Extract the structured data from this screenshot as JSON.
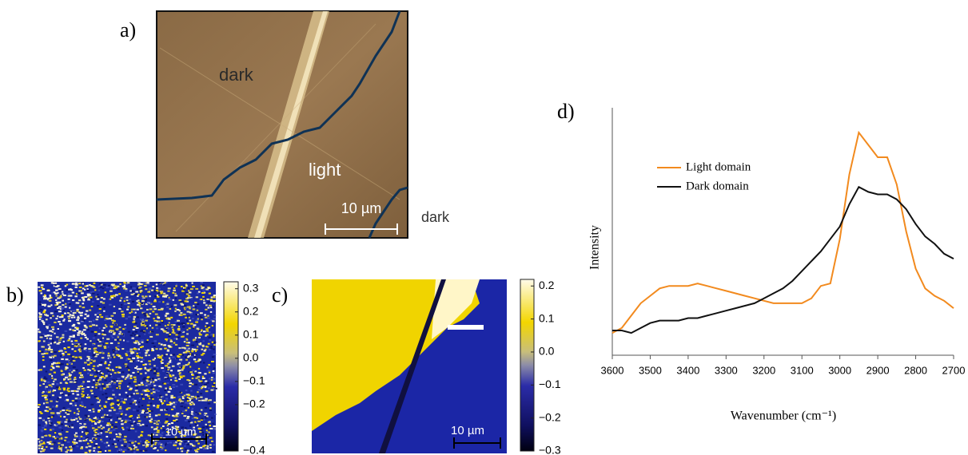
{
  "panel_a": {
    "label": "a)",
    "annotations": [
      "dark",
      "light"
    ],
    "scale_bar": "10 µm",
    "outside_label": "dark"
  },
  "panel_b": {
    "label": "b)",
    "scale_bar": "10 µm",
    "colorbar": {
      "lim": [
        -0.4,
        0.33
      ],
      "ticks": [
        0.3,
        0.2,
        0.1,
        {
          "value": 0,
          "label": "0.0"
        },
        {
          "value": -0.1,
          "label": "−0.1"
        },
        {
          "value": -0.2,
          "label": "−0.2"
        },
        {
          "value": -0.4,
          "label": "−0.4"
        }
      ]
    }
  },
  "panel_c": {
    "label": "c)",
    "scale_bar": "10 µm",
    "colorbar": {
      "lim": [
        -0.3,
        0.22
      ],
      "ticks": [
        0.2,
        0.1,
        {
          "value": 0,
          "label": "0.0"
        },
        {
          "value": -0.1,
          "label": "−0.1"
        },
        {
          "value": -0.2,
          "label": "−0.2"
        },
        {
          "value": -0.3,
          "label": "−0.3"
        }
      ]
    }
  },
  "chart_data": {
    "type": "line",
    "panel_label": "d)",
    "x_label": "Wavenumber (cm⁻¹)",
    "y_label": "Intensity",
    "x": [
      3600,
      3575,
      3550,
      3525,
      3500,
      3475,
      3450,
      3425,
      3400,
      3375,
      3350,
      3325,
      3300,
      3275,
      3250,
      3225,
      3200,
      3175,
      3150,
      3125,
      3100,
      3075,
      3050,
      3025,
      3000,
      2975,
      2950,
      2925,
      2900,
      2875,
      2850,
      2825,
      2800,
      2775,
      2750,
      2725,
      2700
    ],
    "xlim": [
      3600,
      2700
    ],
    "xticks": [
      3600,
      3500,
      3400,
      3300,
      3200,
      3100,
      3000,
      2900,
      2800,
      2700
    ],
    "ylim": [
      0,
      1
    ],
    "series": [
      {
        "name": "Light domain",
        "color": "#f28a1e",
        "values": [
          0.09,
          0.11,
          0.16,
          0.21,
          0.24,
          0.27,
          0.28,
          0.28,
          0.28,
          0.29,
          0.28,
          0.27,
          0.26,
          0.25,
          0.24,
          0.23,
          0.22,
          0.21,
          0.21,
          0.21,
          0.21,
          0.23,
          0.28,
          0.29,
          0.47,
          0.73,
          0.9,
          0.85,
          0.8,
          0.8,
          0.69,
          0.5,
          0.35,
          0.27,
          0.24,
          0.22,
          0.19
        ]
      },
      {
        "name": "Dark domain",
        "color": "#111111",
        "values": [
          0.1,
          0.1,
          0.09,
          0.11,
          0.13,
          0.14,
          0.14,
          0.14,
          0.15,
          0.15,
          0.16,
          0.17,
          0.18,
          0.19,
          0.2,
          0.21,
          0.23,
          0.25,
          0.27,
          0.3,
          0.34,
          0.38,
          0.42,
          0.47,
          0.52,
          0.61,
          0.68,
          0.66,
          0.65,
          0.65,
          0.63,
          0.59,
          0.53,
          0.48,
          0.45,
          0.41,
          0.39
        ]
      }
    ]
  }
}
